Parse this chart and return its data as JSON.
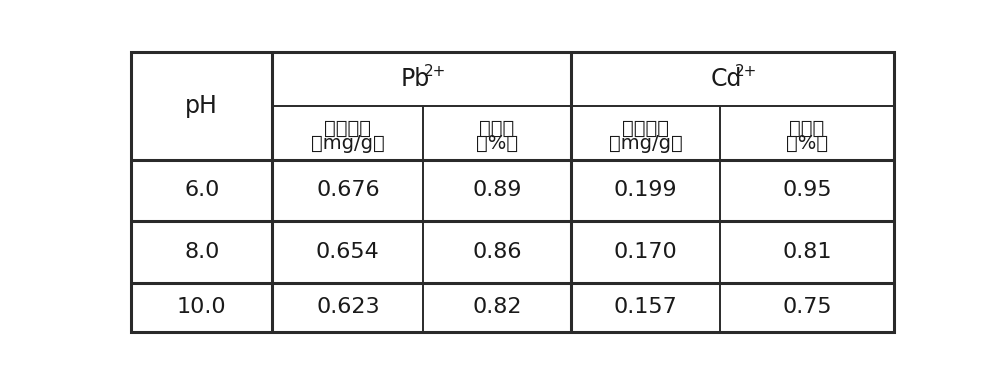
{
  "col_headers": [
    [
      "溶出浓度",
      "（mg/g）"
    ],
    [
      "溶出率",
      "（%）"
    ],
    [
      "溶出浓度",
      "（mg/g）"
    ],
    [
      "溶出率",
      "（%）"
    ]
  ],
  "rows": [
    {
      "ph": "6.0",
      "pb_conc": "0.676",
      "pb_rate": "0.89",
      "cd_conc": "0.199",
      "cd_rate": "0.95"
    },
    {
      "ph": "8.0",
      "pb_conc": "0.654",
      "pb_rate": "0.86",
      "cd_conc": "0.170",
      "cd_rate": "0.81"
    },
    {
      "ph": "10.0",
      "pb_conc": "0.623",
      "pb_rate": "0.82",
      "cd_conc": "0.157",
      "cd_rate": "0.75"
    }
  ],
  "bg_color": "#ffffff",
  "text_color": "#1a1a1a",
  "line_color": "#2a2a2a",
  "font_size_header": 17,
  "font_size_subheader": 14,
  "font_size_data": 16,
  "font_size_super": 11
}
